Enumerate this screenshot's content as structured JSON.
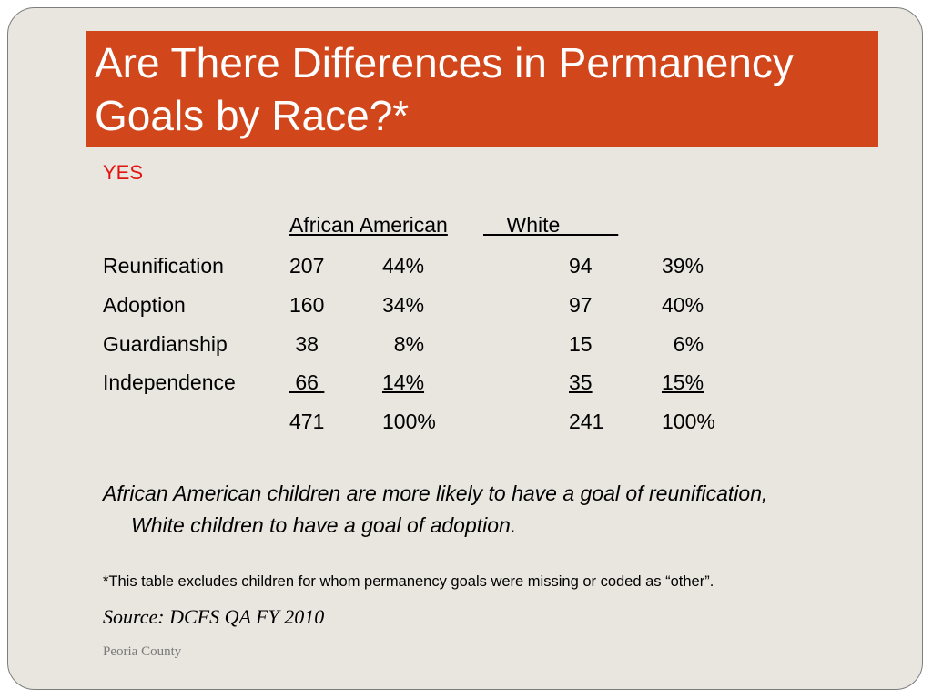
{
  "slide": {
    "title": "Are There Differences in Permanency Goals by Race?*",
    "subtitle": "YES",
    "table": {
      "headers": {
        "group1": "African American",
        "group2": "    White          "
      },
      "rows": [
        {
          "label": "Reunification",
          "aa_n": "207",
          "aa_pct": "44%",
          "w_n": "94",
          "w_pct": "39%"
        },
        {
          "label": "Adoption",
          "aa_n": "160",
          "aa_pct": "34%",
          "w_n": "97",
          "w_pct": "40%"
        },
        {
          "label": "Guardianship",
          "aa_n": " 38",
          "aa_pct": "  8%",
          "w_n": "15",
          "w_pct": "  6%"
        },
        {
          "label": "Independence",
          "aa_n": " 66 ",
          "aa_pct": "14%",
          "w_n": "35",
          "w_pct": "15%"
        }
      ],
      "total": {
        "aa_n": "471",
        "aa_pct": "100%",
        "w_n": "241",
        "w_pct": "100%"
      }
    },
    "conclusion": "African American children are more likely to have a goal of reunification, White children to have a goal of adoption.",
    "footnote": "*This table excludes children for whom permanency goals were missing or coded as “other”.",
    "source": "Source: DCFS QA FY 2010",
    "organization": "Peoria County"
  }
}
